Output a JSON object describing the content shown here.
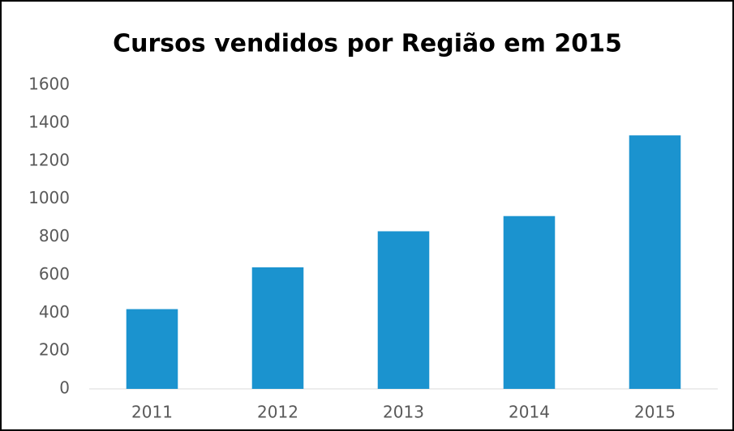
{
  "chart_data": {
    "type": "bar",
    "title": "Cursos vendidos por Região em 2015",
    "categories": [
      "2011",
      "2012",
      "2013",
      "2014",
      "2015"
    ],
    "values": [
      420,
      640,
      830,
      910,
      1335
    ],
    "color": "#1b93cf",
    "ylim": [
      0,
      1600
    ],
    "yticks": [
      0,
      200,
      400,
      600,
      800,
      1000,
      1200,
      1400,
      1600
    ],
    "grid": false
  }
}
